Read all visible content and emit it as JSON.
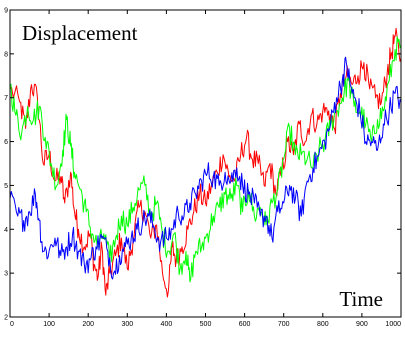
{
  "chart_data": {
    "type": "line",
    "title": "",
    "xlabel": "",
    "ylabel": "",
    "annotations": [
      {
        "name": "top-left-label",
        "text": "Displacement"
      },
      {
        "name": "bottom-right-label",
        "text": "Time"
      }
    ],
    "xlim": [
      0,
      1000
    ],
    "ylim": [
      2,
      9
    ],
    "xticks": [
      0,
      100,
      200,
      300,
      400,
      500,
      600,
      700,
      800,
      900,
      1000
    ],
    "yticks": [
      2,
      3,
      4,
      5,
      6,
      7,
      8,
      9
    ],
    "grid": false,
    "legend": "none",
    "series": [
      {
        "color": "#ff0000",
        "points": [
          [
            0,
            7.2
          ],
          [
            25,
            6.9
          ],
          [
            40,
            6.3
          ],
          [
            55,
            7.3
          ],
          [
            70,
            7.0
          ],
          [
            85,
            5.5
          ],
          [
            100,
            5.7
          ],
          [
            115,
            5.1
          ],
          [
            130,
            5.2
          ],
          [
            140,
            4.6
          ],
          [
            155,
            5.3
          ],
          [
            165,
            4.4
          ],
          [
            175,
            4.0
          ],
          [
            190,
            3.6
          ],
          [
            205,
            3.9
          ],
          [
            215,
            3.2
          ],
          [
            225,
            2.9
          ],
          [
            235,
            3.6
          ],
          [
            245,
            2.5
          ],
          [
            255,
            3.0
          ],
          [
            270,
            3.4
          ],
          [
            285,
            3.8
          ],
          [
            300,
            3.1
          ],
          [
            315,
            3.8
          ],
          [
            330,
            4.5
          ],
          [
            345,
            4.4
          ],
          [
            360,
            3.8
          ],
          [
            375,
            4.1
          ],
          [
            390,
            3.0
          ],
          [
            405,
            2.6
          ],
          [
            415,
            3.6
          ],
          [
            425,
            3.3
          ],
          [
            440,
            3.6
          ],
          [
            455,
            4.0
          ],
          [
            470,
            4.4
          ],
          [
            485,
            4.8
          ],
          [
            500,
            4.6
          ],
          [
            515,
            5.0
          ],
          [
            530,
            5.3
          ],
          [
            545,
            5.7
          ],
          [
            560,
            5.2
          ],
          [
            575,
            5.1
          ],
          [
            590,
            5.7
          ],
          [
            605,
            6.1
          ],
          [
            620,
            5.6
          ],
          [
            635,
            5.5
          ],
          [
            650,
            5.0
          ],
          [
            665,
            5.5
          ],
          [
            680,
            4.8
          ],
          [
            695,
            5.3
          ],
          [
            710,
            6.0
          ],
          [
            725,
            5.7
          ],
          [
            740,
            6.4
          ],
          [
            755,
            6.0
          ],
          [
            770,
            6.6
          ],
          [
            785,
            6.4
          ],
          [
            800,
            6.7
          ],
          [
            815,
            6.7
          ],
          [
            830,
            6.3
          ],
          [
            845,
            7.1
          ],
          [
            860,
            7.5
          ],
          [
            875,
            7.3
          ],
          [
            890,
            7.5
          ],
          [
            905,
            7.8
          ],
          [
            920,
            7.2
          ],
          [
            935,
            7.0
          ],
          [
            950,
            6.9
          ],
          [
            965,
            7.6
          ],
          [
            975,
            8.0
          ],
          [
            985,
            8.4
          ],
          [
            1000,
            7.9
          ]
        ]
      },
      {
        "color": "#00ff00",
        "points": [
          [
            0,
            7.3
          ],
          [
            15,
            6.6
          ],
          [
            30,
            6.2
          ],
          [
            45,
            6.8
          ],
          [
            60,
            6.5
          ],
          [
            75,
            6.8
          ],
          [
            90,
            6.1
          ],
          [
            105,
            5.5
          ],
          [
            120,
            5.0
          ],
          [
            135,
            5.8
          ],
          [
            145,
            6.5
          ],
          [
            155,
            5.9
          ],
          [
            165,
            5.3
          ],
          [
            180,
            4.9
          ],
          [
            195,
            4.4
          ],
          [
            210,
            3.9
          ],
          [
            225,
            3.6
          ],
          [
            240,
            3.9
          ],
          [
            255,
            3.3
          ],
          [
            270,
            3.8
          ],
          [
            285,
            4.3
          ],
          [
            300,
            4.1
          ],
          [
            315,
            4.5
          ],
          [
            330,
            4.9
          ],
          [
            345,
            5.0
          ],
          [
            360,
            4.3
          ],
          [
            375,
            4.6
          ],
          [
            390,
            3.9
          ],
          [
            405,
            3.5
          ],
          [
            420,
            3.9
          ],
          [
            435,
            3.1
          ],
          [
            450,
            3.5
          ],
          [
            460,
            2.8
          ],
          [
            475,
            3.5
          ],
          [
            490,
            3.6
          ],
          [
            505,
            3.9
          ],
          [
            520,
            4.3
          ],
          [
            535,
            4.5
          ],
          [
            550,
            4.8
          ],
          [
            565,
            4.7
          ],
          [
            580,
            5.0
          ],
          [
            595,
            4.4
          ],
          [
            610,
            4.9
          ],
          [
            625,
            4.3
          ],
          [
            640,
            4.5
          ],
          [
            655,
            4.1
          ],
          [
            670,
            4.6
          ],
          [
            685,
            4.9
          ],
          [
            700,
            5.6
          ],
          [
            715,
            6.3
          ],
          [
            730,
            5.7
          ],
          [
            745,
            5.7
          ],
          [
            760,
            5.6
          ],
          [
            775,
            5.4
          ],
          [
            790,
            5.8
          ],
          [
            805,
            6.0
          ],
          [
            820,
            6.4
          ],
          [
            835,
            6.7
          ],
          [
            850,
            7.0
          ],
          [
            865,
            7.4
          ],
          [
            880,
            6.8
          ],
          [
            895,
            6.7
          ],
          [
            910,
            6.4
          ],
          [
            925,
            6.0
          ],
          [
            940,
            6.5
          ],
          [
            955,
            6.7
          ],
          [
            970,
            7.4
          ],
          [
            985,
            8.1
          ],
          [
            1000,
            8.2
          ]
        ]
      },
      {
        "color": "#0000ff",
        "points": [
          [
            0,
            4.7
          ],
          [
            20,
            4.3
          ],
          [
            35,
            4.2
          ],
          [
            50,
            4.4
          ],
          [
            65,
            4.8
          ],
          [
            75,
            4.2
          ],
          [
            85,
            3.5
          ],
          [
            100,
            3.5
          ],
          [
            115,
            3.8
          ],
          [
            130,
            3.4
          ],
          [
            145,
            3.6
          ],
          [
            160,
            3.9
          ],
          [
            175,
            3.5
          ],
          [
            190,
            3.2
          ],
          [
            205,
            3.3
          ],
          [
            220,
            3.6
          ],
          [
            235,
            3.8
          ],
          [
            250,
            3.5
          ],
          [
            265,
            3.0
          ],
          [
            280,
            3.4
          ],
          [
            295,
            3.6
          ],
          [
            310,
            3.8
          ],
          [
            325,
            4.0
          ],
          [
            340,
            4.2
          ],
          [
            355,
            4.3
          ],
          [
            370,
            4.0
          ],
          [
            385,
            3.7
          ],
          [
            400,
            3.8
          ],
          [
            415,
            4.0
          ],
          [
            430,
            4.4
          ],
          [
            445,
            4.3
          ],
          [
            460,
            4.6
          ],
          [
            475,
            4.8
          ],
          [
            490,
            5.1
          ],
          [
            505,
            5.3
          ],
          [
            520,
            5.2
          ],
          [
            535,
            5.0
          ],
          [
            550,
            5.3
          ],
          [
            565,
            5.1
          ],
          [
            580,
            5.4
          ],
          [
            595,
            5.0
          ],
          [
            610,
            4.8
          ],
          [
            625,
            4.6
          ],
          [
            640,
            4.3
          ],
          [
            655,
            4.3
          ],
          [
            670,
            3.8
          ],
          [
            685,
            4.4
          ],
          [
            700,
            4.6
          ],
          [
            715,
            5.0
          ],
          [
            730,
            4.7
          ],
          [
            745,
            4.3
          ],
          [
            760,
            5.1
          ],
          [
            775,
            5.4
          ],
          [
            790,
            5.7
          ],
          [
            805,
            6.0
          ],
          [
            820,
            6.4
          ],
          [
            835,
            7.0
          ],
          [
            850,
            7.4
          ],
          [
            860,
            7.8
          ],
          [
            870,
            7.3
          ],
          [
            880,
            7.0
          ],
          [
            895,
            6.7
          ],
          [
            910,
            6.0
          ],
          [
            925,
            6.0
          ],
          [
            940,
            5.8
          ],
          [
            955,
            6.4
          ],
          [
            970,
            6.7
          ],
          [
            985,
            7.1
          ],
          [
            1000,
            6.9
          ]
        ]
      }
    ]
  }
}
